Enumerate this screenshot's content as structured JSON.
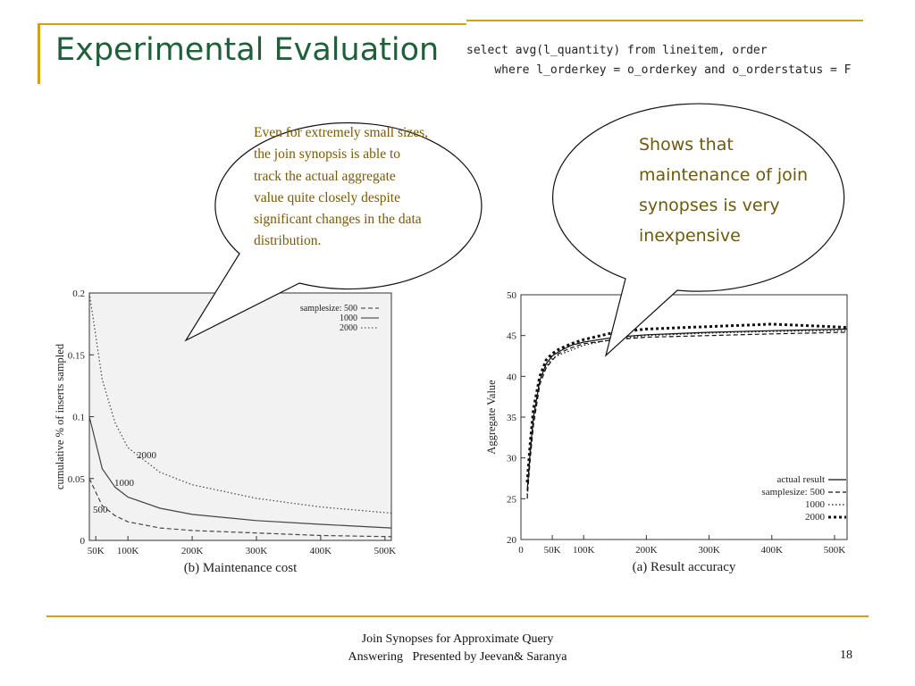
{
  "slide": {
    "title": "Experimental Evaluation",
    "sql_line1": "select avg(l_quantity) from lineitem, order",
    "sql_line2": "    where l_orderkey = o_orderkey and o_orderstatus = F",
    "callout_left": "Even for extremely small sizes, the join synopsis is able to track the actual aggregate value quite closely despite significant changes in the data distribution.",
    "callout_right": "Shows that maintenance of join synopses is very inexpensive",
    "footer_line1": "Join Synopses for Approximate Query",
    "footer_line2": "Answering   Presented by Jeevan& Saranya",
    "page_number": "18",
    "accent_color": "#d4a017",
    "title_color": "#1f5f3a"
  },
  "chart_data": [
    {
      "type": "line",
      "caption": "(b) Maintenance cost",
      "ylabel": "cumulative % of inserts sampled",
      "xlim": [
        40,
        510
      ],
      "ylim": [
        0,
        0.2
      ],
      "x_ticks": [
        50,
        100,
        200,
        300,
        400,
        500
      ],
      "x_tick_labels": [
        "50K",
        "100K",
        "200K",
        "300K",
        "400K",
        "500K"
      ],
      "y_ticks": [
        0,
        0.05,
        0.1,
        0.15,
        0.2
      ],
      "y_tick_labels": [
        "0",
        "0.05",
        "0.1",
        "0.15",
        "0.2"
      ],
      "legend_title": "samplesize:",
      "legend_position": "top-right",
      "series": [
        {
          "name": "500",
          "inline_label": "500",
          "style": "dashed",
          "x": [
            40,
            60,
            80,
            100,
            150,
            200,
            300,
            400,
            510
          ],
          "y": [
            0.05,
            0.028,
            0.02,
            0.015,
            0.01,
            0.008,
            0.006,
            0.004,
            0.003
          ]
        },
        {
          "name": "1000",
          "inline_label": "1000",
          "style": "solid",
          "x": [
            40,
            60,
            80,
            100,
            150,
            200,
            300,
            400,
            510
          ],
          "y": [
            0.1,
            0.058,
            0.043,
            0.035,
            0.026,
            0.021,
            0.016,
            0.013,
            0.01
          ]
        },
        {
          "name": "2000",
          "inline_label": "2000",
          "style": "dotted",
          "x": [
            40,
            60,
            80,
            100,
            150,
            200,
            300,
            400,
            510
          ],
          "y": [
            0.2,
            0.13,
            0.095,
            0.075,
            0.055,
            0.045,
            0.034,
            0.027,
            0.022
          ]
        }
      ]
    },
    {
      "type": "line",
      "caption": "(a) Result accuracy",
      "ylabel": "Aggregate Value",
      "xlim": [
        0,
        520
      ],
      "ylim": [
        20,
        50
      ],
      "x_ticks": [
        0,
        50,
        100,
        200,
        300,
        400,
        500
      ],
      "x_tick_labels": [
        "0",
        "50K",
        "100K",
        "200K",
        "300K",
        "400K",
        "500K"
      ],
      "y_ticks": [
        20,
        25,
        30,
        35,
        40,
        45,
        50
      ],
      "y_tick_labels": [
        "20",
        "25",
        "30",
        "35",
        "40",
        "45",
        "50"
      ],
      "legend_title": "samplesize:",
      "legend_position": "bottom-right",
      "series": [
        {
          "name": "actual result",
          "style": "solid",
          "x": [
            10,
            15,
            20,
            30,
            40,
            50,
            60,
            80,
            100,
            150,
            200,
            300,
            400,
            520
          ],
          "y": [
            26,
            31,
            35,
            39.5,
            41.5,
            42.5,
            43,
            43.8,
            44.2,
            44.8,
            45.1,
            45.4,
            45.6,
            45.8
          ]
        },
        {
          "name": "500",
          "style": "dashed",
          "x": [
            10,
            15,
            20,
            30,
            40,
            50,
            60,
            80,
            100,
            150,
            200,
            300,
            400,
            520
          ],
          "y": [
            25,
            30,
            34,
            39,
            41,
            42,
            42.8,
            43.5,
            44,
            44.5,
            44.8,
            45,
            45.2,
            45.4
          ]
        },
        {
          "name": "1000",
          "style": "dotted",
          "x": [
            10,
            15,
            20,
            30,
            40,
            50,
            60,
            80,
            100,
            150,
            200,
            300,
            400,
            520
          ],
          "y": [
            25.5,
            31,
            35,
            39.5,
            41.2,
            42.2,
            42.6,
            43.2,
            43.8,
            44.6,
            45,
            45.3,
            45.5,
            45.6
          ]
        },
        {
          "name": "2000",
          "style": "thick-dotted",
          "x": [
            10,
            15,
            20,
            30,
            40,
            50,
            60,
            80,
            100,
            150,
            200,
            300,
            400,
            520
          ],
          "y": [
            27,
            32,
            36,
            40,
            42,
            42.8,
            43.3,
            44,
            44.5,
            45.4,
            45.8,
            46.1,
            46.4,
            46
          ]
        }
      ]
    }
  ]
}
